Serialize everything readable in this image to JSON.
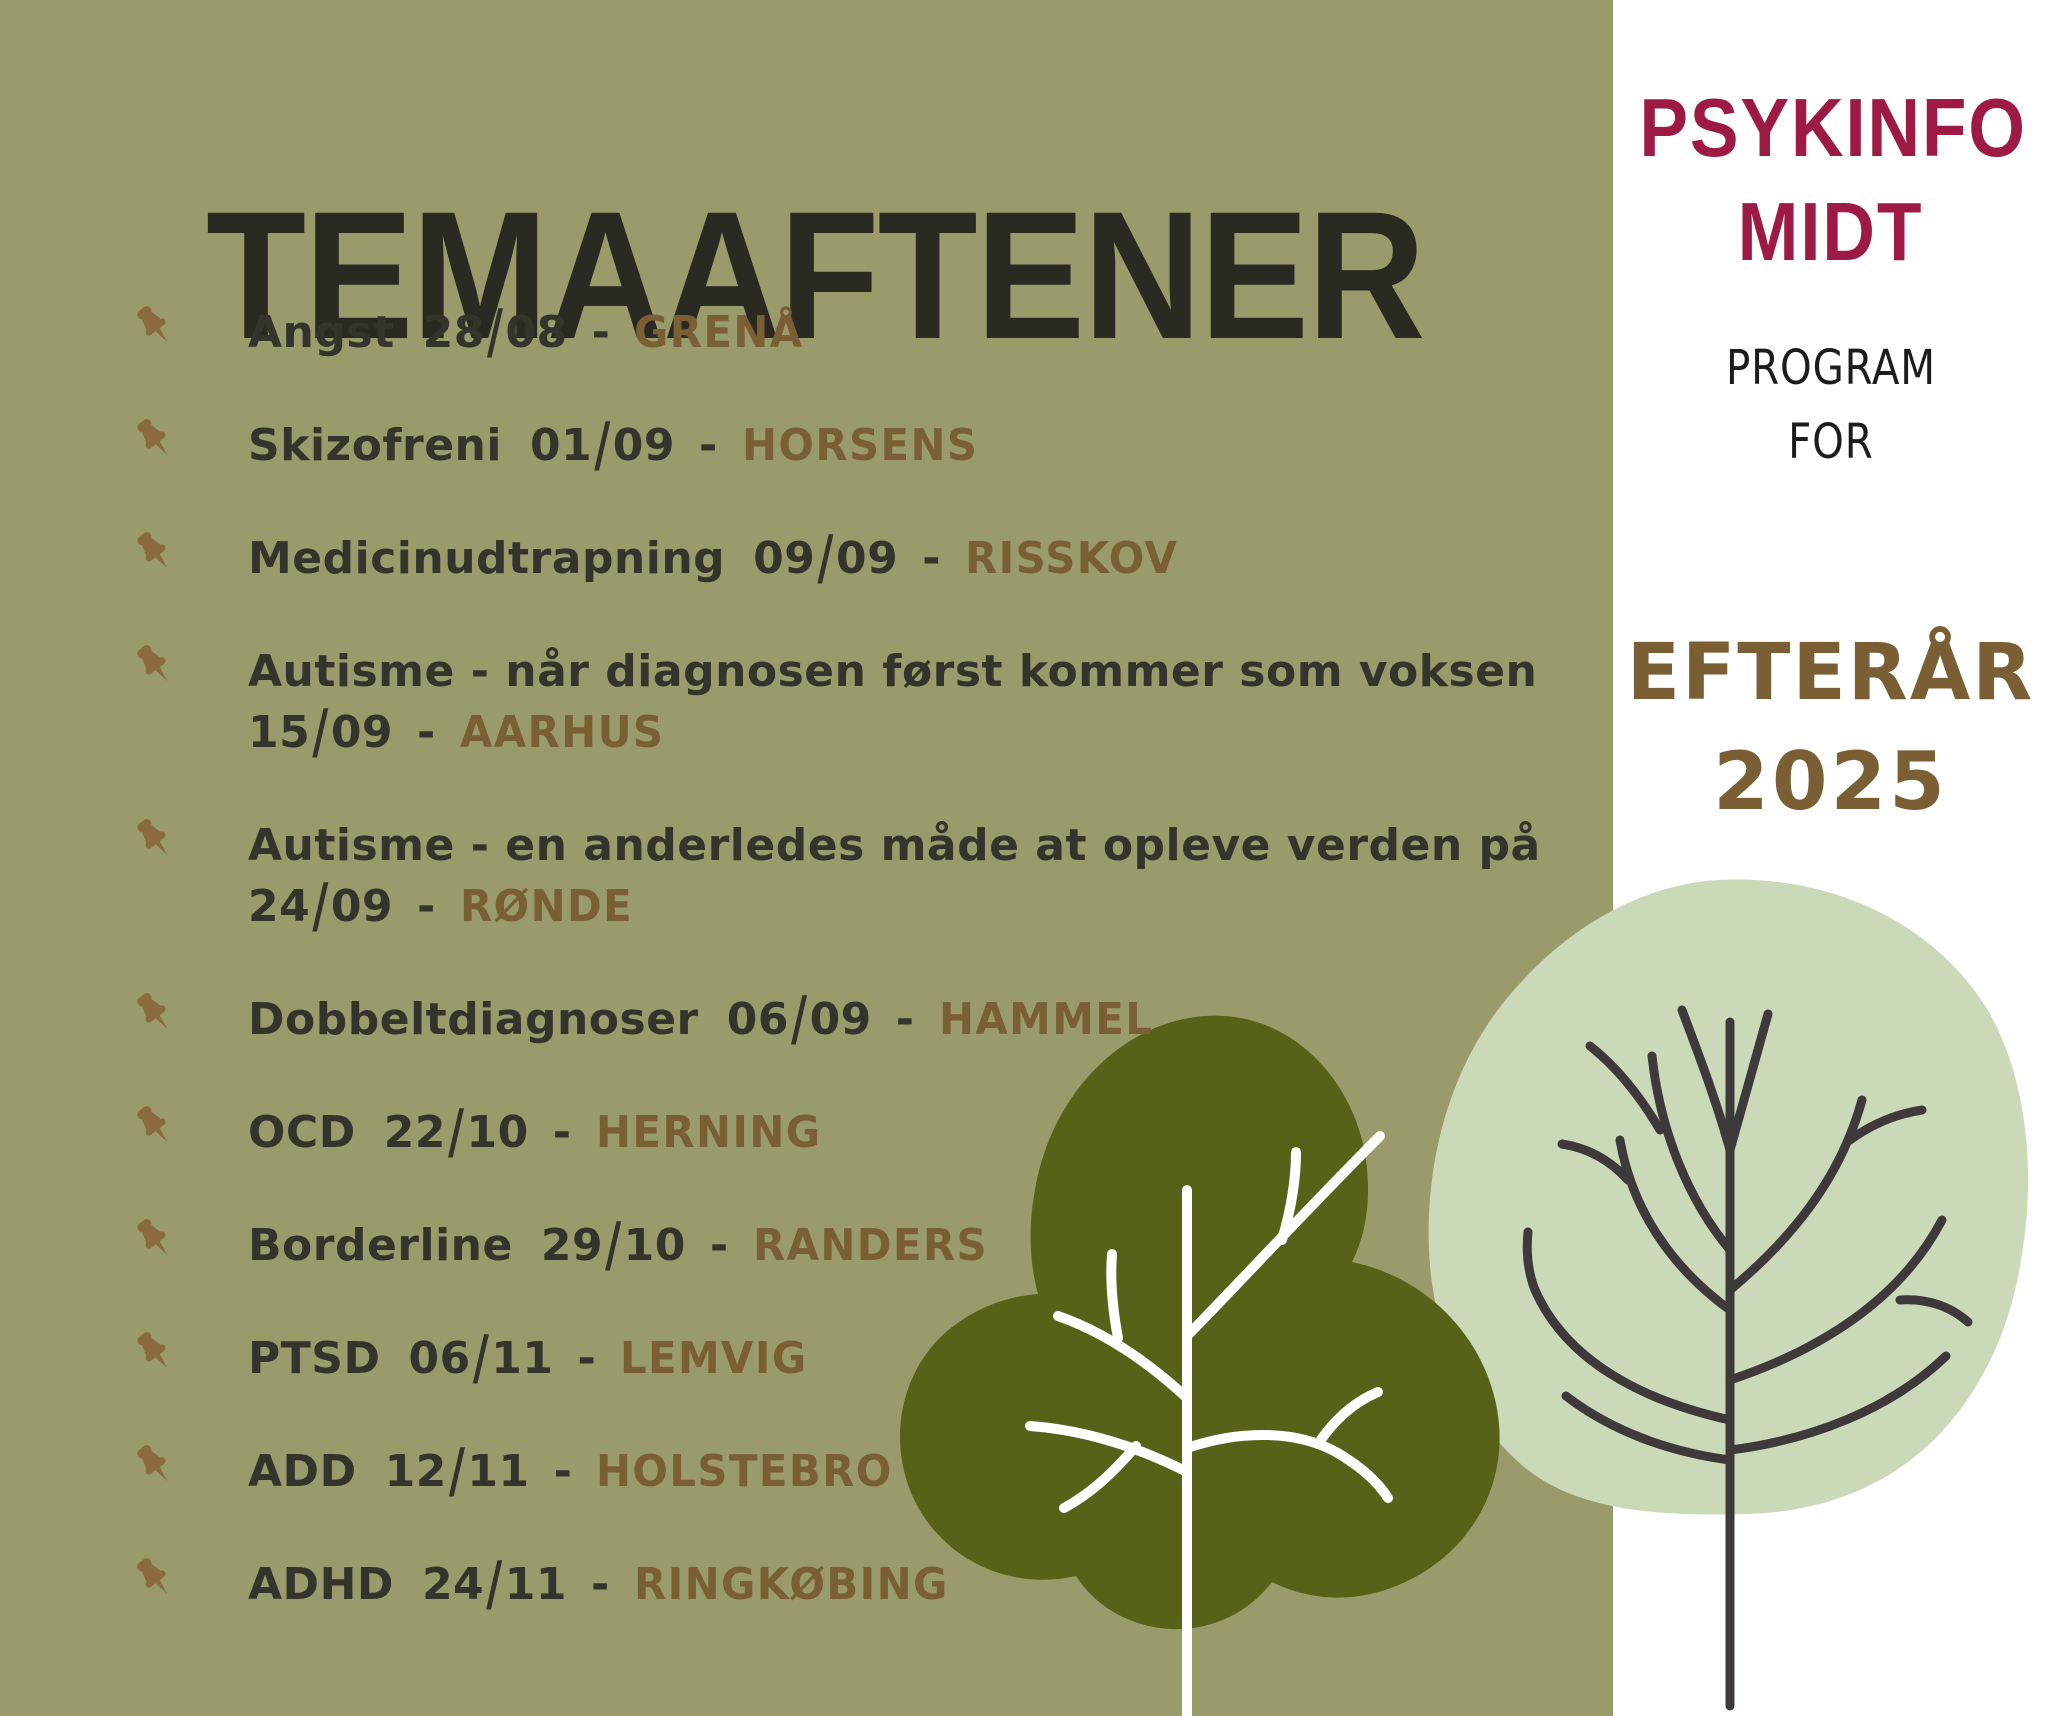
{
  "poster": {
    "title": "TEMAAFTENER",
    "brand": {
      "line1": "PSYKINFO",
      "line2": "MIDT"
    },
    "program_label": {
      "line1": "PROGRAM",
      "line2": "FOR"
    },
    "season": {
      "line1": "EFTERÅR",
      "line2": "2025"
    },
    "separator": "-",
    "events": [
      {
        "topic": "Angst",
        "date": "28/08",
        "location": "GRENÅ",
        "two_line": false
      },
      {
        "topic": "Skizofreni",
        "date": "01/09",
        "location": "HORSENS",
        "two_line": false
      },
      {
        "topic": "Medicinudtrapning",
        "date": "09/09",
        "location": "RISSKOV",
        "two_line": false
      },
      {
        "topic": "Autisme - når diagnosen først kommer som voksen",
        "date": "15/09",
        "location": "AARHUS",
        "two_line": true
      },
      {
        "topic": "Autisme - en anderledes måde at opleve verden på",
        "date": "24/09",
        "location": "RØNDE",
        "two_line": true
      },
      {
        "topic": "Dobbeltdiagnoser",
        "date": "06/09",
        "location": "HAMMEL",
        "two_line": false
      },
      {
        "topic": "OCD",
        "date": "22/10",
        "location": "HERNING",
        "two_line": false
      },
      {
        "topic": "Borderline",
        "date": "29/10",
        "location": "RANDERS",
        "two_line": false
      },
      {
        "topic": "PTSD",
        "date": "06/11",
        "location": "LEMVIG",
        "two_line": false
      },
      {
        "topic": "ADD",
        "date": "12/11",
        "location": "HOLSTEBRO",
        "two_line": false
      },
      {
        "topic": "ADHD",
        "date": "24/11",
        "location": "RINGKØBING",
        "two_line": false
      }
    ],
    "icons": {
      "bullet": "pushpin-icon"
    },
    "colors": {
      "background_olive": "#9a9b6a",
      "panel_white": "#ffffff",
      "title_ink": "#2b2a22",
      "text_ink": "#35342c",
      "accent_brown": "#7b5f34",
      "pin_brown": "#8a6a3e",
      "brand_maroon": "#9d1a44",
      "program_ink": "#1d1c1a",
      "tree_dark_olive": "#576118",
      "tree_light_green": "#cbd9b9",
      "tree_charcoal": "#3e3a3b",
      "tree_white": "#ffffff"
    }
  }
}
